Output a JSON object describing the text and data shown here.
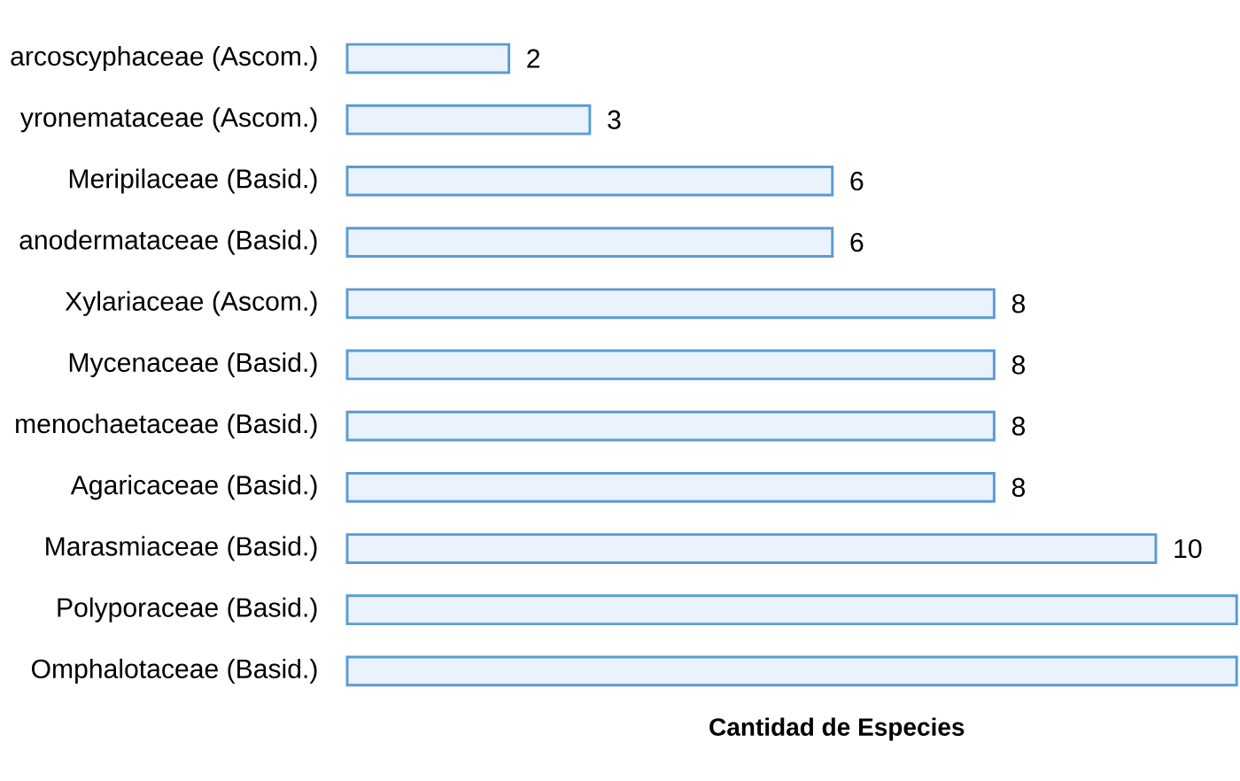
{
  "chart_data": {
    "type": "bar",
    "orientation": "horizontal",
    "xlabel": "Cantidad de Especies",
    "categories": [
      "arcoscyphaceae (Ascom.)",
      "yronemataceae (Ascom.)",
      "Meripilaceae (Basid.)",
      "anodermataceae (Basid.)",
      "Xylariaceae (Ascom.)",
      "Mycenaceae (Basid.)",
      "menochaetaceae (Basid.)",
      "Agaricaceae (Basid.)",
      "Marasmiaceae (Basid.)",
      "Polyporaceae (Basid.)",
      "Omphalotaceae (Basid.)"
    ],
    "values": [
      2,
      3,
      6,
      6,
      8,
      8,
      8,
      8,
      10,
      11,
      11
    ],
    "value_labels": [
      "2",
      "3",
      "6",
      "6",
      "8",
      "8",
      "8",
      "8",
      "10",
      null,
      null
    ],
    "color": "#eaf2fb"
  }
}
